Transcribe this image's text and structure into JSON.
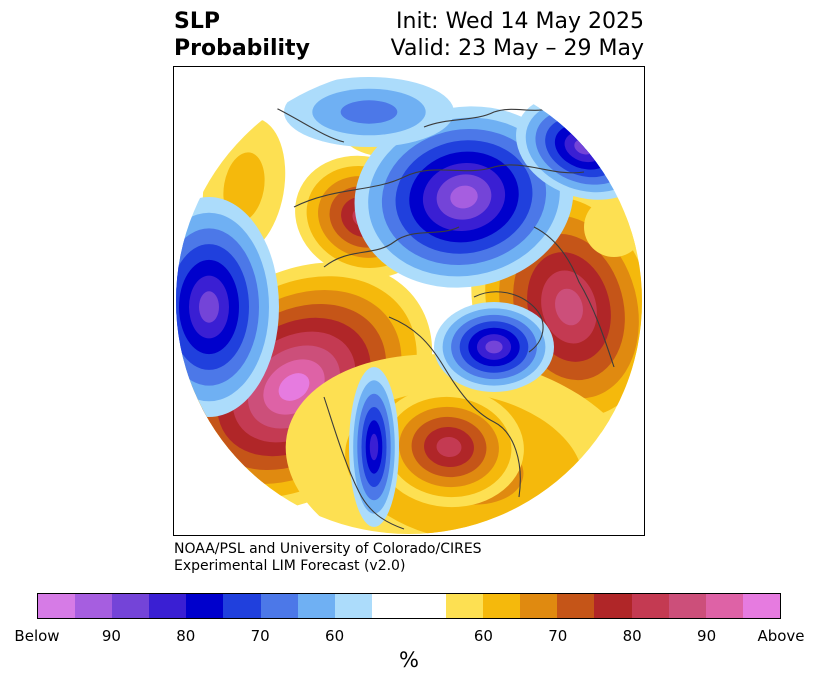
{
  "header": {
    "title_line1": "SLP",
    "title_line2": "Probability",
    "init_text": "Init: Wed 14 May 2025",
    "valid_text": "Valid: 23 May – 29 May"
  },
  "credit": {
    "line1": "NOAA/PSL and University of Colorado/CIRES",
    "line2": "Experimental LIM Forecast (v2.0)"
  },
  "colorbar": {
    "unit": "%",
    "below_colors": [
      "#d67be6",
      "#a65ee0",
      "#7444d8",
      "#3a1fd3",
      "#0000cc",
      "#2040dd",
      "#4c78e8",
      "#6fb0f3",
      "#acdcfb"
    ],
    "neutral_color": "#ffffff",
    "above_colors": [
      "#fde052",
      "#f5b90c",
      "#e08a10",
      "#c55518",
      "#b02628",
      "#c43a52",
      "#cc4f7a",
      "#de62a6",
      "#e67be0"
    ],
    "tick_labels": [
      "Below",
      "90",
      "80",
      "70",
      "60",
      "60",
      "70",
      "80",
      "90",
      "Above"
    ]
  },
  "map": {
    "projection": "north-polar-stereographic",
    "variable": "SLP probability",
    "features": [
      "coastlines",
      "country-borders",
      "state-borders"
    ]
  }
}
